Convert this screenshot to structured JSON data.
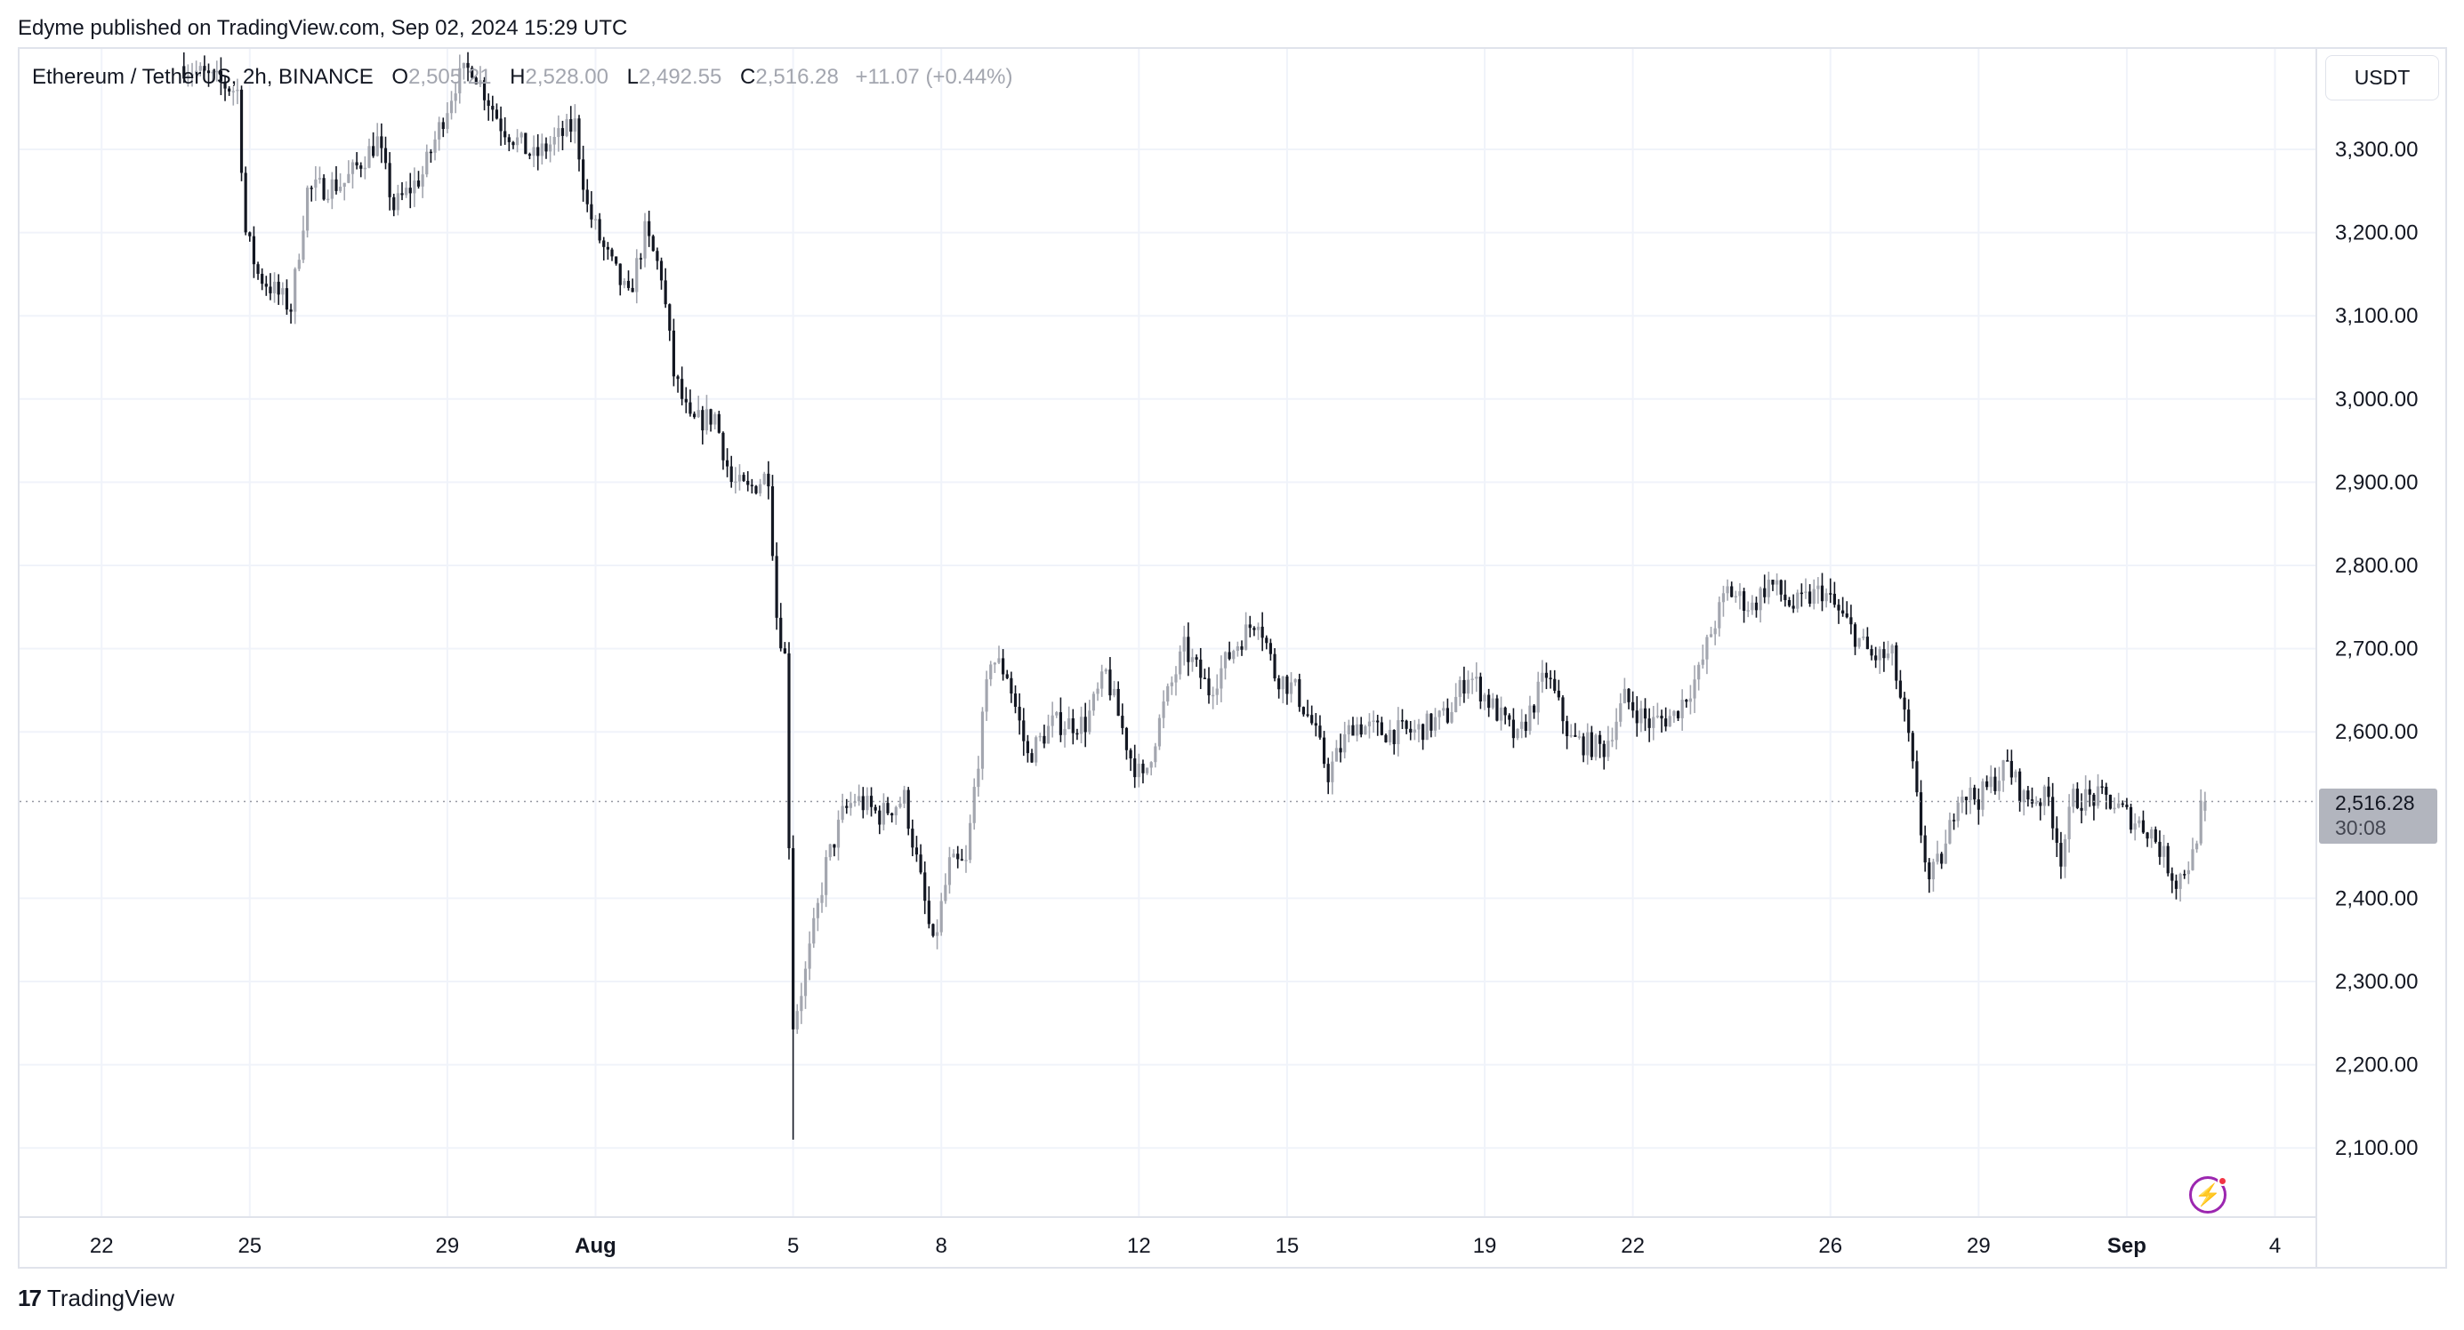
{
  "published": "Edyme published on TradingView.com, Sep 02, 2024 15:29 UTC",
  "legend": {
    "symbol": "Ethereum / TetherUS, 2h, BINANCE",
    "o_label": "O",
    "o": "2,505.21",
    "h_label": "H",
    "h": "2,528.00",
    "l_label": "L",
    "l": "2,492.55",
    "c_label": "C",
    "c": "2,516.28",
    "change": "+11.07 (+0.44%)"
  },
  "currency_button": "USDT",
  "last_price": {
    "value": "2,516.28",
    "countdown": "30:08"
  },
  "footer": {
    "logo": "TradingView"
  },
  "colors": {
    "up": "#a3a6af",
    "down": "#131722",
    "grid": "#f0f3fa",
    "price_label": "#b2b5be",
    "alert_icon": "#9c27b0"
  },
  "icons": {
    "alert": "lightning-bolt-icon",
    "logo": "tradingview-logo-icon"
  },
  "chart_data": {
    "type": "candlestick",
    "interval": "2h",
    "ylim": [
      2000,
      3450
    ],
    "grid": true,
    "y_ticks": [
      "3,300.00",
      "3,200.00",
      "3,100.00",
      "3,000.00",
      "2,900.00",
      "2,800.00",
      "2,700.00",
      "2,600.00",
      "2,400.00",
      "2,300.00",
      "2,200.00",
      "2,100.00"
    ],
    "y_tick_values": [
      3300,
      3200,
      3100,
      3000,
      2900,
      2800,
      2700,
      2600,
      2400,
      2300,
      2200,
      2100
    ],
    "x_ticks": [
      {
        "label": "22",
        "date": "2024-07-22"
      },
      {
        "label": "25",
        "date": "2024-07-25"
      },
      {
        "label": "29",
        "date": "2024-07-29"
      },
      {
        "label": "Aug",
        "date": "2024-08-01",
        "bold": true
      },
      {
        "label": "5",
        "date": "2024-08-05"
      },
      {
        "label": "8",
        "date": "2024-08-08"
      },
      {
        "label": "12",
        "date": "2024-08-12"
      },
      {
        "label": "15",
        "date": "2024-08-15"
      },
      {
        "label": "19",
        "date": "2024-08-19"
      },
      {
        "label": "22",
        "date": "2024-08-22"
      },
      {
        "label": "26",
        "date": "2024-08-26"
      },
      {
        "label": "29",
        "date": "2024-08-29"
      },
      {
        "label": "Sep",
        "date": "2024-09-01",
        "bold": true
      },
      {
        "label": "4",
        "date": "2024-09-04"
      }
    ],
    "close_path": [
      [
        "2024-07-23T16:00",
        3400
      ],
      [
        "2024-07-24T18:00",
        3370
      ],
      [
        "2024-07-24T22:00",
        3200
      ],
      [
        "2024-07-25T04:00",
        3150
      ],
      [
        "2024-07-25T20:00",
        3110
      ],
      [
        "2024-07-26T04:00",
        3250
      ],
      [
        "2024-07-26T22:00",
        3260
      ],
      [
        "2024-07-27T14:00",
        3310
      ],
      [
        "2024-07-27T22:00",
        3230
      ],
      [
        "2024-07-28T12:00",
        3270
      ],
      [
        "2024-07-29T04:00",
        3380
      ],
      [
        "2024-07-29T12:00",
        3400
      ],
      [
        "2024-07-30T02:00",
        3330
      ],
      [
        "2024-07-30T18:00",
        3290
      ],
      [
        "2024-07-31T14:00",
        3330
      ],
      [
        "2024-07-31T20:00",
        3230
      ],
      [
        "2024-08-01T04:00",
        3180
      ],
      [
        "2024-08-01T16:00",
        3120
      ],
      [
        "2024-08-02T00:00",
        3200
      ],
      [
        "2024-08-02T08:00",
        3150
      ],
      [
        "2024-08-02T14:00",
        3030
      ],
      [
        "2024-08-02T22:00",
        2970
      ],
      [
        "2024-08-03T10:00",
        2980
      ],
      [
        "2024-08-03T18:00",
        2900
      ],
      [
        "2024-08-04T02:00",
        2890
      ],
      [
        "2024-08-04T12:00",
        2910
      ],
      [
        "2024-08-04T16:00",
        2740
      ],
      [
        "2024-08-04T20:00",
        2690
      ],
      [
        "2024-08-05T00:00",
        2250
      ],
      [
        "2024-08-05T06:00",
        2310
      ],
      [
        "2024-08-05T16:00",
        2440
      ],
      [
        "2024-08-06T00:00",
        2500
      ],
      [
        "2024-08-06T06:00",
        2520
      ],
      [
        "2024-08-06T18:00",
        2500
      ],
      [
        "2024-08-07T06:00",
        2520
      ],
      [
        "2024-08-07T14:00",
        2420
      ],
      [
        "2024-08-07T20:00",
        2340
      ],
      [
        "2024-08-08T04:00",
        2440
      ],
      [
        "2024-08-08T12:00",
        2440
      ],
      [
        "2024-08-08T16:00",
        2530
      ],
      [
        "2024-08-09T00:00",
        2690
      ],
      [
        "2024-08-09T08:00",
        2670
      ],
      [
        "2024-08-09T18:00",
        2570
      ],
      [
        "2024-08-10T06:00",
        2610
      ],
      [
        "2024-08-10T22:00",
        2610
      ],
      [
        "2024-08-11T08:00",
        2670
      ],
      [
        "2024-08-11T20:00",
        2570
      ],
      [
        "2024-08-12T02:00",
        2540
      ],
      [
        "2024-08-12T12:00",
        2630
      ],
      [
        "2024-08-12T22:00",
        2700
      ],
      [
        "2024-08-13T10:00",
        2650
      ],
      [
        "2024-08-13T22:00",
        2700
      ],
      [
        "2024-08-14T10:00",
        2740
      ],
      [
        "2024-08-14T18:00",
        2670
      ],
      [
        "2024-08-15T04:00",
        2650
      ],
      [
        "2024-08-15T12:00",
        2610
      ],
      [
        "2024-08-15T20:00",
        2550
      ],
      [
        "2024-08-16T08:00",
        2610
      ],
      [
        "2024-08-16T22:00",
        2600
      ],
      [
        "2024-08-17T14:00",
        2600
      ],
      [
        "2024-08-18T06:00",
        2620
      ],
      [
        "2024-08-18T16:00",
        2670
      ],
      [
        "2024-08-19T04:00",
        2630
      ],
      [
        "2024-08-19T16:00",
        2590
      ],
      [
        "2024-08-20T06:00",
        2670
      ],
      [
        "2024-08-20T18:00",
        2590
      ],
      [
        "2024-08-21T10:00",
        2580
      ],
      [
        "2024-08-21T20:00",
        2640
      ],
      [
        "2024-08-22T08:00",
        2610
      ],
      [
        "2024-08-22T20:00",
        2620
      ],
      [
        "2024-08-23T08:00",
        2670
      ],
      [
        "2024-08-23T14:00",
        2720
      ],
      [
        "2024-08-23T22:00",
        2770
      ],
      [
        "2024-08-24T10:00",
        2750
      ],
      [
        "2024-08-24T18:00",
        2780
      ],
      [
        "2024-08-25T06:00",
        2750
      ],
      [
        "2024-08-25T20:00",
        2770
      ],
      [
        "2024-08-26T08:00",
        2730
      ],
      [
        "2024-08-26T20:00",
        2690
      ],
      [
        "2024-08-27T06:00",
        2690
      ],
      [
        "2024-08-27T14:00",
        2590
      ],
      [
        "2024-08-27T20:00",
        2480
      ],
      [
        "2024-08-28T00:00",
        2420
      ],
      [
        "2024-08-28T08:00",
        2460
      ],
      [
        "2024-08-28T14:00",
        2530
      ],
      [
        "2024-08-29T00:00",
        2520
      ],
      [
        "2024-08-29T14:00",
        2560
      ],
      [
        "2024-08-29T22:00",
        2520
      ],
      [
        "2024-08-30T10:00",
        2520
      ],
      [
        "2024-08-30T16:00",
        2450
      ],
      [
        "2024-08-30T22:00",
        2520
      ],
      [
        "2024-08-31T14:00",
        2520
      ],
      [
        "2024-09-01T00:00",
        2500
      ],
      [
        "2024-09-01T12:00",
        2480
      ],
      [
        "2024-09-02T00:00",
        2420
      ],
      [
        "2024-09-02T08:00",
        2450
      ],
      [
        "2024-09-02T12:00",
        2505.21
      ],
      [
        "2024-09-02T14:00",
        2516.28
      ]
    ],
    "notable_lows": [
      [
        "2024-08-05T00:00",
        2110
      ]
    ],
    "last_candle": {
      "open": 2505.21,
      "high": 2528.0,
      "low": 2492.55,
      "close": 2516.28
    },
    "last_price": 2516.28
  }
}
